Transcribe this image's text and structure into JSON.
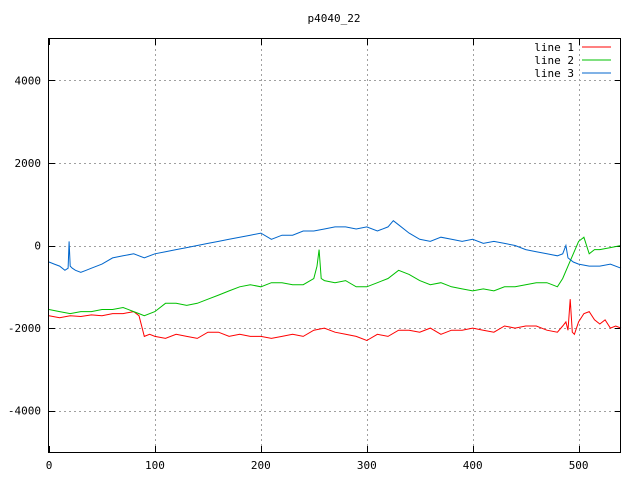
{
  "chart_data": {
    "type": "line",
    "title": "p4040_22",
    "xlim": [
      0,
      540
    ],
    "ylim": [
      -5000,
      5000
    ],
    "x_ticks": [
      0,
      100,
      200,
      300,
      400,
      500
    ],
    "y_ticks": [
      -4000,
      -2000,
      0,
      2000,
      4000
    ],
    "grid": true,
    "legend_placement": "top-right",
    "series": [
      {
        "name": "line 1",
        "color": "#ff0000",
        "x": [
          0,
          10,
          20,
          30,
          40,
          50,
          60,
          70,
          80,
          85,
          88,
          90,
          95,
          100,
          110,
          120,
          130,
          140,
          150,
          160,
          170,
          180,
          190,
          200,
          210,
          220,
          230,
          240,
          250,
          260,
          270,
          280,
          290,
          300,
          310,
          320,
          330,
          340,
          350,
          360,
          370,
          380,
          390,
          400,
          410,
          420,
          430,
          440,
          450,
          460,
          470,
          480,
          485,
          488,
          490,
          492,
          494,
          496,
          500,
          505,
          510,
          515,
          520,
          525,
          530,
          535,
          540
        ],
        "y": [
          -1700,
          -1750,
          -1700,
          -1720,
          -1680,
          -1700,
          -1650,
          -1650,
          -1600,
          -1700,
          -2000,
          -2200,
          -2150,
          -2200,
          -2250,
          -2150,
          -2200,
          -2250,
          -2100,
          -2100,
          -2200,
          -2150,
          -2200,
          -2200,
          -2250,
          -2200,
          -2150,
          -2200,
          -2050,
          -2000,
          -2100,
          -2150,
          -2200,
          -2300,
          -2150,
          -2200,
          -2050,
          -2050,
          -2100,
          -2000,
          -2150,
          -2050,
          -2050,
          -2000,
          -2050,
          -2100,
          -1950,
          -2000,
          -1950,
          -1950,
          -2050,
          -2100,
          -1950,
          -1850,
          -2050,
          -1300,
          -2100,
          -2150,
          -1850,
          -1650,
          -1600,
          -1800,
          -1900,
          -1800,
          -2000,
          -1950,
          -2000
        ]
      },
      {
        "name": "line 2",
        "color": "#00c000",
        "x": [
          0,
          10,
          20,
          30,
          40,
          50,
          60,
          70,
          80,
          85,
          90,
          100,
          110,
          120,
          130,
          140,
          150,
          160,
          170,
          180,
          190,
          200,
          210,
          220,
          230,
          240,
          250,
          253,
          255,
          257,
          260,
          270,
          280,
          290,
          300,
          310,
          320,
          330,
          340,
          350,
          360,
          370,
          380,
          390,
          400,
          410,
          420,
          430,
          440,
          450,
          460,
          470,
          475,
          480,
          485,
          490,
          495,
          500,
          505,
          510,
          515,
          520,
          530,
          540
        ],
        "y": [
          -1550,
          -1600,
          -1650,
          -1600,
          -1600,
          -1550,
          -1550,
          -1500,
          -1600,
          -1650,
          -1700,
          -1600,
          -1400,
          -1400,
          -1450,
          -1400,
          -1300,
          -1200,
          -1100,
          -1000,
          -950,
          -1000,
          -900,
          -900,
          -950,
          -950,
          -800,
          -500,
          -100,
          -800,
          -850,
          -900,
          -850,
          -1000,
          -1000,
          -900,
          -800,
          -600,
          -700,
          -850,
          -950,
          -900,
          -1000,
          -1050,
          -1100,
          -1050,
          -1100,
          -1000,
          -1000,
          -950,
          -900,
          -900,
          -950,
          -1000,
          -800,
          -500,
          -200,
          100,
          200,
          -200,
          -100,
          -100,
          -50,
          0
        ]
      },
      {
        "name": "line 3",
        "color": "#0066cc",
        "x": [
          0,
          5,
          10,
          15,
          18,
          19,
          20,
          22,
          25,
          30,
          35,
          40,
          50,
          60,
          70,
          80,
          90,
          100,
          110,
          120,
          130,
          140,
          150,
          160,
          170,
          180,
          190,
          200,
          210,
          220,
          230,
          240,
          250,
          260,
          270,
          280,
          290,
          300,
          310,
          320,
          325,
          330,
          340,
          350,
          360,
          370,
          380,
          390,
          400,
          410,
          420,
          430,
          440,
          450,
          460,
          470,
          480,
          485,
          488,
          490,
          495,
          500,
          510,
          520,
          530,
          540
        ],
        "y": [
          -400,
          -450,
          -500,
          -600,
          -550,
          100,
          -500,
          -550,
          -600,
          -650,
          -600,
          -550,
          -450,
          -300,
          -250,
          -200,
          -300,
          -200,
          -150,
          -100,
          -50,
          0,
          50,
          100,
          150,
          200,
          250,
          300,
          150,
          250,
          250,
          350,
          350,
          400,
          450,
          450,
          400,
          450,
          350,
          450,
          600,
          500,
          300,
          150,
          100,
          200,
          150,
          100,
          150,
          50,
          100,
          50,
          0,
          -100,
          -150,
          -200,
          -250,
          -200,
          0,
          -300,
          -400,
          -450,
          -500,
          -500,
          -450,
          -550
        ]
      }
    ]
  }
}
